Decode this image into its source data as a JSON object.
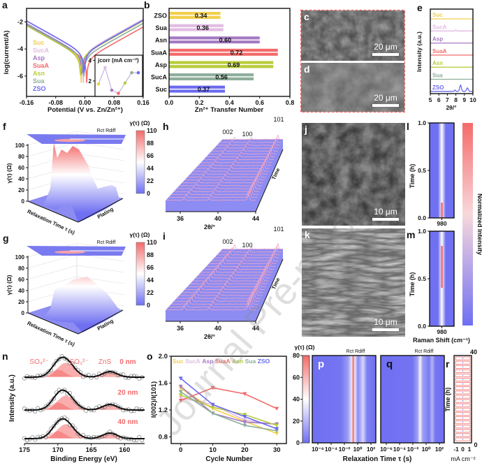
{
  "watermark": "Journal Pre-proof",
  "chart_data": [
    {
      "panel": "a",
      "type": "line",
      "xlabel": "Potential (V vs. Zn/Zn²⁺)",
      "ylabel": "log(current/A)",
      "xlim": [
        -0.16,
        0.16
      ],
      "ylim": [
        -7.5,
        -1
      ],
      "xticks": [
        "-0.16",
        "-0.08",
        "0.00",
        "0.08",
        "0.16"
      ],
      "yticks": [
        "-2",
        "-4",
        "-6"
      ],
      "series": [
        {
          "name": "Suc",
          "color": "#f2cf4e",
          "ecorr_V": -0.01
        },
        {
          "name": "SucA",
          "color": "#e2bce2",
          "ecorr_V": -0.004
        },
        {
          "name": "Asp",
          "color": "#a57ac2",
          "ecorr_V": -0.008
        },
        {
          "name": "SuaA",
          "color": "#f46a6a",
          "ecorr_V": 0.005
        },
        {
          "name": "Asn",
          "color": "#b9cc3c",
          "ecorr_V": -0.012
        },
        {
          "name": "Sua",
          "color": "#8fae9c",
          "ecorr_V": -0.003
        },
        {
          "name": "ZSO",
          "color": "#6a6af0",
          "ecorr_V": -0.002
        }
      ],
      "inset": {
        "title": "jcorr (mA cm⁻²)",
        "ylim": [
          0.5,
          4.5
        ],
        "yticks": [
          "2",
          "4"
        ],
        "values": [
          1.7,
          3.3,
          1.1,
          0.8,
          1.8,
          2.8,
          2.8
        ]
      }
    },
    {
      "panel": "b",
      "type": "bar",
      "orientation": "horizontal",
      "xlabel": "Zn²⁺ Transfer Number",
      "xlim": [
        0,
        0.8
      ],
      "xticks": [
        "0.0",
        "0.2",
        "0.4",
        "0.6",
        "0.8"
      ],
      "categories": [
        "ZSO",
        "Sua",
        "Asn",
        "SuaA",
        "Asp",
        "SucA",
        "Suc"
      ],
      "values": [
        0.34,
        0.36,
        0.6,
        0.72,
        0.69,
        0.56,
        0.37
      ],
      "value_labels": [
        "0.34",
        "0.36",
        "0.60",
        "0.72",
        "0.69",
        "0.56",
        "0.37"
      ],
      "colors": [
        "#f2cf4e",
        "#e2bce2",
        "#a57ac2",
        "#f46a6a",
        "#b9cc3c",
        "#8fae9c",
        "#6a6af0"
      ]
    },
    {
      "panel": "c",
      "type": "image",
      "scale_bar": "20 μm"
    },
    {
      "panel": "d",
      "type": "image",
      "scale_bar": "20 μm"
    },
    {
      "panel": "e",
      "type": "line",
      "xlabel": "2θ/°",
      "ylabel": "Intensity (a.u.)",
      "xlim": [
        5,
        10
      ],
      "xticks": [
        "5",
        "6",
        "7",
        "8",
        "9",
        "10"
      ],
      "series": [
        {
          "name": "Suc",
          "color": "#f2cf4e"
        },
        {
          "name": "SucA",
          "color": "#e2bce2"
        },
        {
          "name": "Asp",
          "color": "#a57ac2"
        },
        {
          "name": "SuaA",
          "color": "#f46a6a"
        },
        {
          "name": "Asn",
          "color": "#b9cc3c"
        },
        {
          "name": "Sua",
          "color": "#8fae9c"
        },
        {
          "name": "ZSO",
          "color": "#6a6af0"
        }
      ]
    },
    {
      "panel": "f",
      "type": "surface3d",
      "zlabel": "γ(τ) (Ω)",
      "xlabel": "Relaxation Time τ (s)",
      "ylabel": "Plating",
      "zticks": [
        "0",
        "20",
        "40",
        "60",
        "80",
        "100"
      ],
      "peak_labels": "Rct Rdiff",
      "colorbar": {
        "title": "γ(τ) (Ω)",
        "ticks": [
          "110",
          "88",
          "66",
          "44",
          "22",
          "0"
        ],
        "range": [
          0,
          110
        ]
      },
      "peak_value": 100
    },
    {
      "panel": "g",
      "type": "surface3d",
      "zlabel": "γ(τ) (Ω)",
      "xlabel": "Relaxation Time τ (s)",
      "ylabel": "Plating",
      "zticks": [
        "0",
        "20",
        "40",
        "60",
        "80",
        "100"
      ],
      "peak_labels": "Rct Rdiff",
      "colorbar": {
        "title": "γ(τ) (Ω)",
        "ticks": [
          "110",
          "88",
          "66",
          "44",
          "22",
          "0"
        ],
        "range": [
          0,
          110
        ]
      },
      "peak_value": 50
    },
    {
      "panel": "h",
      "type": "waterfall",
      "xlabel": "2θ/°",
      "ylabel": "Time",
      "xlim": [
        34.3,
        44
      ],
      "xticks": [
        "36",
        "40",
        "44"
      ],
      "peaks": [
        {
          "label": "002",
          "two_theta": 36.3
        },
        {
          "label": "100",
          "two_theta": 39.0
        },
        {
          "label": "101",
          "two_theta": 43.2
        }
      ]
    },
    {
      "panel": "i",
      "type": "waterfall",
      "xlabel": "2θ/°",
      "ylabel": "Time",
      "xlim": [
        34.3,
        44
      ],
      "xticks": [
        "36",
        "40",
        "44"
      ],
      "peaks": [
        {
          "label": "002",
          "two_theta": 36.3
        },
        {
          "label": "100",
          "two_theta": 39.0
        },
        {
          "label": "101",
          "two_theta": 43.2
        }
      ]
    },
    {
      "panel": "j",
      "type": "image",
      "scale_bar": "10 μm"
    },
    {
      "panel": "k",
      "type": "image",
      "scale_bar": "10 μm"
    },
    {
      "panel": "l",
      "type": "heatmap",
      "ylabel": "Time (h)",
      "yticks": [
        "0.0",
        "0.5",
        "1.0"
      ],
      "xticks": [
        "980"
      ]
    },
    {
      "panel": "m",
      "type": "heatmap",
      "ylabel": "Time (h)",
      "yticks": [
        "0.0",
        "0.5",
        "1.0"
      ],
      "xticks": [
        "980"
      ],
      "xlabel": "Raman Shift (cm⁻¹)",
      "colorbar_label": "Normalized Intensity"
    },
    {
      "panel": "n",
      "type": "line",
      "xlabel": "Binding Energy (eV)",
      "ylabel": "Intensity (a.u.)",
      "xlim": [
        175,
        157
      ],
      "xticks": [
        "175",
        "170",
        "165",
        "160"
      ],
      "components": [
        "SO₄²⁻",
        "SO₃²⁻",
        "ZnS"
      ],
      "depths": [
        "0 nm",
        "20 nm",
        "40 nm"
      ]
    },
    {
      "panel": "o",
      "type": "line",
      "xlabel": "Cycle Number",
      "ylabel": "I(002)/I(101)",
      "xlim": [
        -3,
        33
      ],
      "ylim": [
        0.7,
        2.0
      ],
      "xticks": [
        "0",
        "10",
        "20",
        "30"
      ],
      "yticks": [
        "0.8",
        "1.2",
        "1.6",
        "2.0"
      ],
      "x": [
        0,
        10,
        20,
        30
      ],
      "series": [
        {
          "name": "Suc",
          "color": "#f2cf4e",
          "values": [
            1.52,
            1.22,
            1.03,
            0.85
          ]
        },
        {
          "name": "SucA",
          "color": "#e2bce2",
          "values": [
            1.38,
            1.28,
            1.05,
            0.98
          ]
        },
        {
          "name": "Asp",
          "color": "#a57ac2",
          "values": [
            1.55,
            1.15,
            1.02,
            0.99
          ]
        },
        {
          "name": "SuaA",
          "color": "#f46a6a",
          "values": [
            1.34,
            1.53,
            1.44,
            1.22
          ]
        },
        {
          "name": "Asn",
          "color": "#b9cc3c",
          "values": [
            1.42,
            1.24,
            1.13,
            0.97
          ]
        },
        {
          "name": "Sua",
          "color": "#8fae9c",
          "values": [
            1.47,
            1.15,
            0.97,
            0.89
          ]
        },
        {
          "name": "ZSO",
          "color": "#6a6af0",
          "values": [
            1.67,
            1.28,
            1.1,
            0.92
          ]
        }
      ]
    },
    {
      "panel": "p",
      "type": "heatmap",
      "xlabel": "Relaxation Time τ (s)",
      "xticks": [
        "10⁻⁶",
        "10⁻⁴",
        "10⁻²",
        "10⁰",
        "10²"
      ],
      "peak_labels": "Rct Rdiff",
      "colorbar": {
        "title": "γ(τ) (Ω)",
        "ticks": [
          "80",
          "60",
          "40",
          "20",
          "0"
        ],
        "range": [
          0,
          80
        ]
      }
    },
    {
      "panel": "q",
      "type": "heatmap",
      "xticks": [
        "10⁻⁶",
        "10⁻⁴",
        "10⁻²",
        "10⁰",
        "10²"
      ],
      "peak_labels": "Rct Rdiff"
    },
    {
      "panel": "r",
      "type": "line",
      "ylabel": "Time (h)",
      "xlabel": "mA cm⁻²",
      "xticks": [
        "-1",
        "0",
        "1"
      ],
      "yticks": [
        "0",
        "40"
      ]
    }
  ]
}
